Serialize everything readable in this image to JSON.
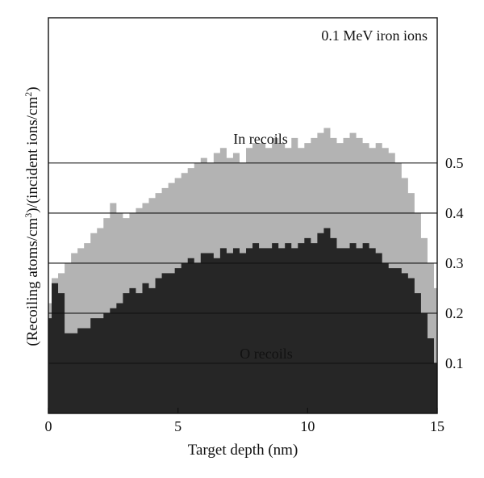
{
  "chart_data": {
    "type": "area",
    "annotation": "0.1 MeV iron ions",
    "xlabel": "Target depth (nm)",
    "ylabel_parts": [
      "(Recoiling atoms/cm",
      "3",
      ")/(incident ions/cm",
      "2",
      ")"
    ],
    "xlim": [
      0,
      15
    ],
    "ylim": [
      0,
      0.79
    ],
    "x_ticks": [
      0,
      5,
      10,
      15
    ],
    "x_tick_labels": [
      "0",
      "5",
      "10",
      "15"
    ],
    "y_ticks": [
      0.1,
      0.2,
      0.3,
      0.4,
      0.5
    ],
    "y_tick_labels": [
      "0.1",
      "0.2",
      "0.3",
      "0.4",
      "0.5"
    ],
    "grid": "horizontal lines at y ticks",
    "series": [
      {
        "name": "In recoils",
        "color": "#b3b3b3",
        "x": [
          0,
          0.25,
          0.5,
          0.75,
          1,
          1.25,
          1.5,
          1.75,
          2,
          2.25,
          2.5,
          2.75,
          3,
          3.25,
          3.5,
          3.75,
          4,
          4.25,
          4.5,
          4.75,
          5,
          5.25,
          5.5,
          5.75,
          6,
          6.25,
          6.5,
          6.75,
          7,
          7.25,
          7.5,
          7.75,
          8,
          8.25,
          8.5,
          8.75,
          9,
          9.25,
          9.5,
          9.75,
          10,
          10.25,
          10.5,
          10.75,
          11,
          11.25,
          11.5,
          11.75,
          12,
          12.25,
          12.5,
          12.75,
          13,
          13.25,
          13.5,
          13.75,
          14,
          14.25,
          14.5,
          14.75,
          15
        ],
        "values": [
          0.22,
          0.27,
          0.28,
          0.3,
          0.32,
          0.33,
          0.34,
          0.36,
          0.37,
          0.39,
          0.42,
          0.4,
          0.39,
          0.4,
          0.41,
          0.42,
          0.43,
          0.44,
          0.45,
          0.46,
          0.47,
          0.48,
          0.49,
          0.5,
          0.51,
          0.5,
          0.52,
          0.53,
          0.51,
          0.52,
          0.5,
          0.53,
          0.54,
          0.54,
          0.53,
          0.55,
          0.54,
          0.53,
          0.55,
          0.53,
          0.54,
          0.55,
          0.56,
          0.57,
          0.55,
          0.54,
          0.55,
          0.56,
          0.55,
          0.54,
          0.53,
          0.54,
          0.53,
          0.52,
          0.5,
          0.47,
          0.44,
          0.4,
          0.35,
          0.3,
          0.25
        ]
      },
      {
        "name": "O recoils",
        "color": "#262626",
        "x": [
          0,
          0.25,
          0.5,
          0.75,
          1,
          1.25,
          1.5,
          1.75,
          2,
          2.25,
          2.5,
          2.75,
          3,
          3.25,
          3.5,
          3.75,
          4,
          4.25,
          4.5,
          4.75,
          5,
          5.25,
          5.5,
          5.75,
          6,
          6.25,
          6.5,
          6.75,
          7,
          7.25,
          7.5,
          7.75,
          8,
          8.25,
          8.5,
          8.75,
          9,
          9.25,
          9.5,
          9.75,
          10,
          10.25,
          10.5,
          10.75,
          11,
          11.25,
          11.5,
          11.75,
          12,
          12.25,
          12.5,
          12.75,
          13,
          13.25,
          13.5,
          13.75,
          14,
          14.25,
          14.5,
          14.75,
          15
        ],
        "values": [
          0.19,
          0.26,
          0.24,
          0.16,
          0.16,
          0.17,
          0.17,
          0.19,
          0.19,
          0.2,
          0.21,
          0.22,
          0.24,
          0.25,
          0.24,
          0.26,
          0.25,
          0.27,
          0.28,
          0.28,
          0.29,
          0.3,
          0.31,
          0.3,
          0.32,
          0.32,
          0.31,
          0.33,
          0.32,
          0.33,
          0.32,
          0.33,
          0.34,
          0.33,
          0.33,
          0.34,
          0.33,
          0.34,
          0.33,
          0.34,
          0.35,
          0.34,
          0.36,
          0.37,
          0.35,
          0.33,
          0.33,
          0.34,
          0.33,
          0.34,
          0.33,
          0.32,
          0.3,
          0.29,
          0.29,
          0.28,
          0.27,
          0.24,
          0.2,
          0.15,
          0.1
        ]
      }
    ]
  }
}
